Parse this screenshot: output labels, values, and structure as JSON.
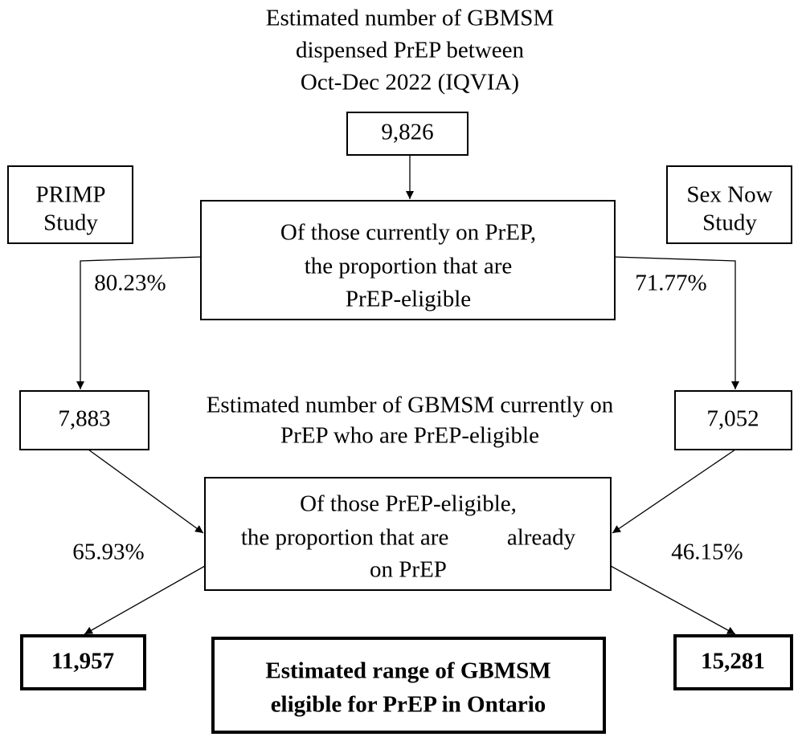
{
  "header": {
    "lines": [
      "Estimated number of GBMSM",
      "dispensed PrEP between",
      "Oct-Dec 2022 (IQVIA)"
    ]
  },
  "nodes": {
    "dispensed": "9,826",
    "primp": [
      "PRIMP",
      "Study"
    ],
    "sexnow": [
      "Sex Now",
      "Study"
    ],
    "proportion_eligible": [
      "Of those currently on PrEP,",
      "the proportion that are",
      "PrEP-eligible"
    ],
    "primp_rate": "80.23%",
    "sexnow_rate": "71.77%",
    "primp_eligible": "7,883",
    "sexnow_eligible": "7,052",
    "eligible_label": [
      "Estimated number of GBMSM currently on",
      "PrEP who are PrEP-eligible"
    ],
    "proportion_on_prep": [
      "Of those PrEP-eligible,",
      "the proportion that are          already",
      "on PrEP"
    ],
    "primp_on_rate": "65.93%",
    "sexnow_on_rate": "46.15%",
    "primp_total": "11,957",
    "sexnow_total": "15,281",
    "range_label": [
      "Estimated range of GBMSM",
      "eligible for PrEP in Ontario"
    ]
  }
}
